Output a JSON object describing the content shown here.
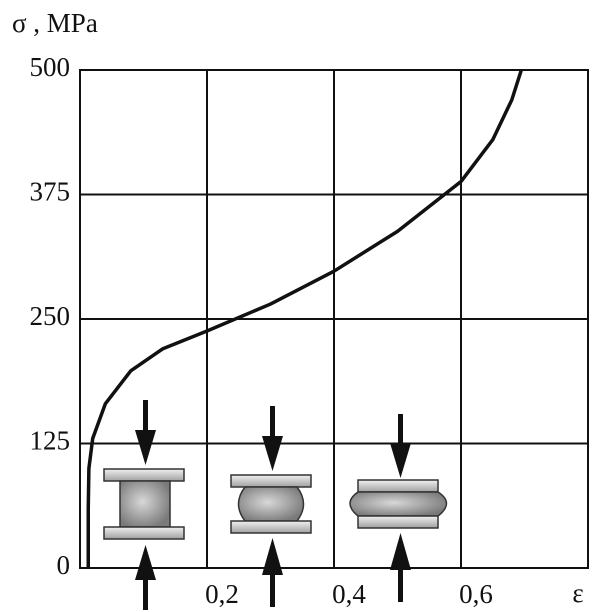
{
  "chart_data": {
    "type": "line",
    "y_label": "σ , MPa",
    "x_label": "ε",
    "x": [
      0.013,
      0.013,
      0.014,
      0.02,
      0.04,
      0.08,
      0.13,
      0.2,
      0.3,
      0.4,
      0.5,
      0.6,
      0.65,
      0.68,
      0.695
    ],
    "values": [
      0,
      60,
      100,
      130,
      165,
      198,
      220,
      238,
      265,
      298,
      338,
      388,
      430,
      470,
      500
    ],
    "color": "#111111",
    "xlim": [
      0,
      0.8
    ],
    "xticks": [
      {
        "value": 0.2,
        "label": "0,2"
      },
      {
        "value": 0.4,
        "label": "0,4"
      },
      {
        "value": 0.6,
        "label": "0,6"
      }
    ],
    "ylim": [
      0,
      500
    ],
    "yticks": [
      0,
      125,
      250,
      375,
      500
    ],
    "grid": true
  }
}
